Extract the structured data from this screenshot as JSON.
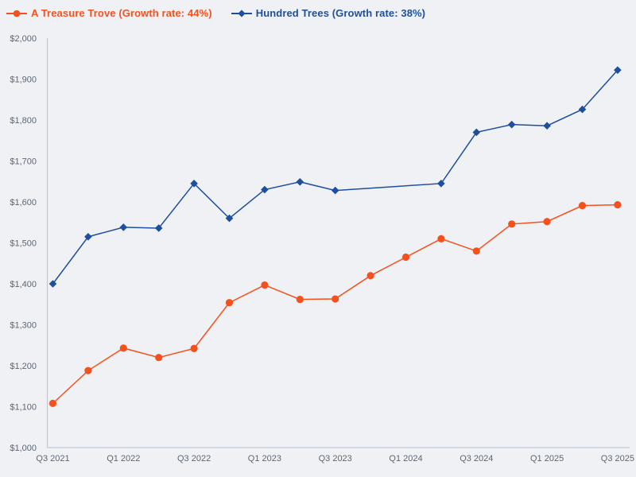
{
  "chart_data": {
    "type": "line",
    "title": "",
    "categories": [
      "Q3 2021",
      "Q4 2021",
      "Q1 2022",
      "Q2 2022",
      "Q3 2022",
      "Q4 2022",
      "Q1 2023",
      "Q2 2023",
      "Q3 2023",
      "Q4 2023",
      "Q1 2024",
      "Q2 2024",
      "Q3 2024",
      "Q4 2024",
      "Q1 2025",
      "Q2 2025",
      "Q3 2025"
    ],
    "x_tick_labels_shown": [
      "Q3 2021",
      "Q1 2022",
      "Q3 2022",
      "Q1 2023",
      "Q3 2023",
      "Q1 2024",
      "Q3 2024",
      "Q1 2025",
      "Q3 2025"
    ],
    "ylim": [
      1000,
      2000
    ],
    "ytick_step": 100,
    "ytick_labels": [
      "$1,000",
      "$1,100",
      "$1,200",
      "$1,300",
      "$1,400",
      "$1,500",
      "$1,600",
      "$1,700",
      "$1,800",
      "$1,900",
      "$2,000"
    ],
    "grid": false,
    "legend_position": "top-left",
    "series": [
      {
        "name": "A Treasure Trove",
        "legend_label": "A Treasure Trove (Growth rate: 44%)",
        "growth_rate": "44%",
        "color": "#f4511e",
        "marker": "circle",
        "values": [
          1108,
          1188,
          1243,
          1220,
          1242,
          1354,
          1397,
          1362,
          1363,
          1420,
          1465,
          1510,
          1480,
          1546,
          1552,
          1591,
          1593
        ]
      },
      {
        "name": "Hundred Trees",
        "legend_label": "Hundred Trees (Growth rate: 38%)",
        "growth_rate": "38%",
        "color": "#1e4f9c",
        "marker": "diamond",
        "values": [
          1400,
          1515,
          1538,
          1536,
          1645,
          1560,
          1630,
          1649,
          1628,
          null,
          null,
          1645,
          1770,
          1789,
          1786,
          1826,
          1922
        ]
      }
    ]
  },
  "colors": {
    "background": "#f0f1f4",
    "axis": "#bdc9db",
    "tick_label": "#5d6774"
  }
}
